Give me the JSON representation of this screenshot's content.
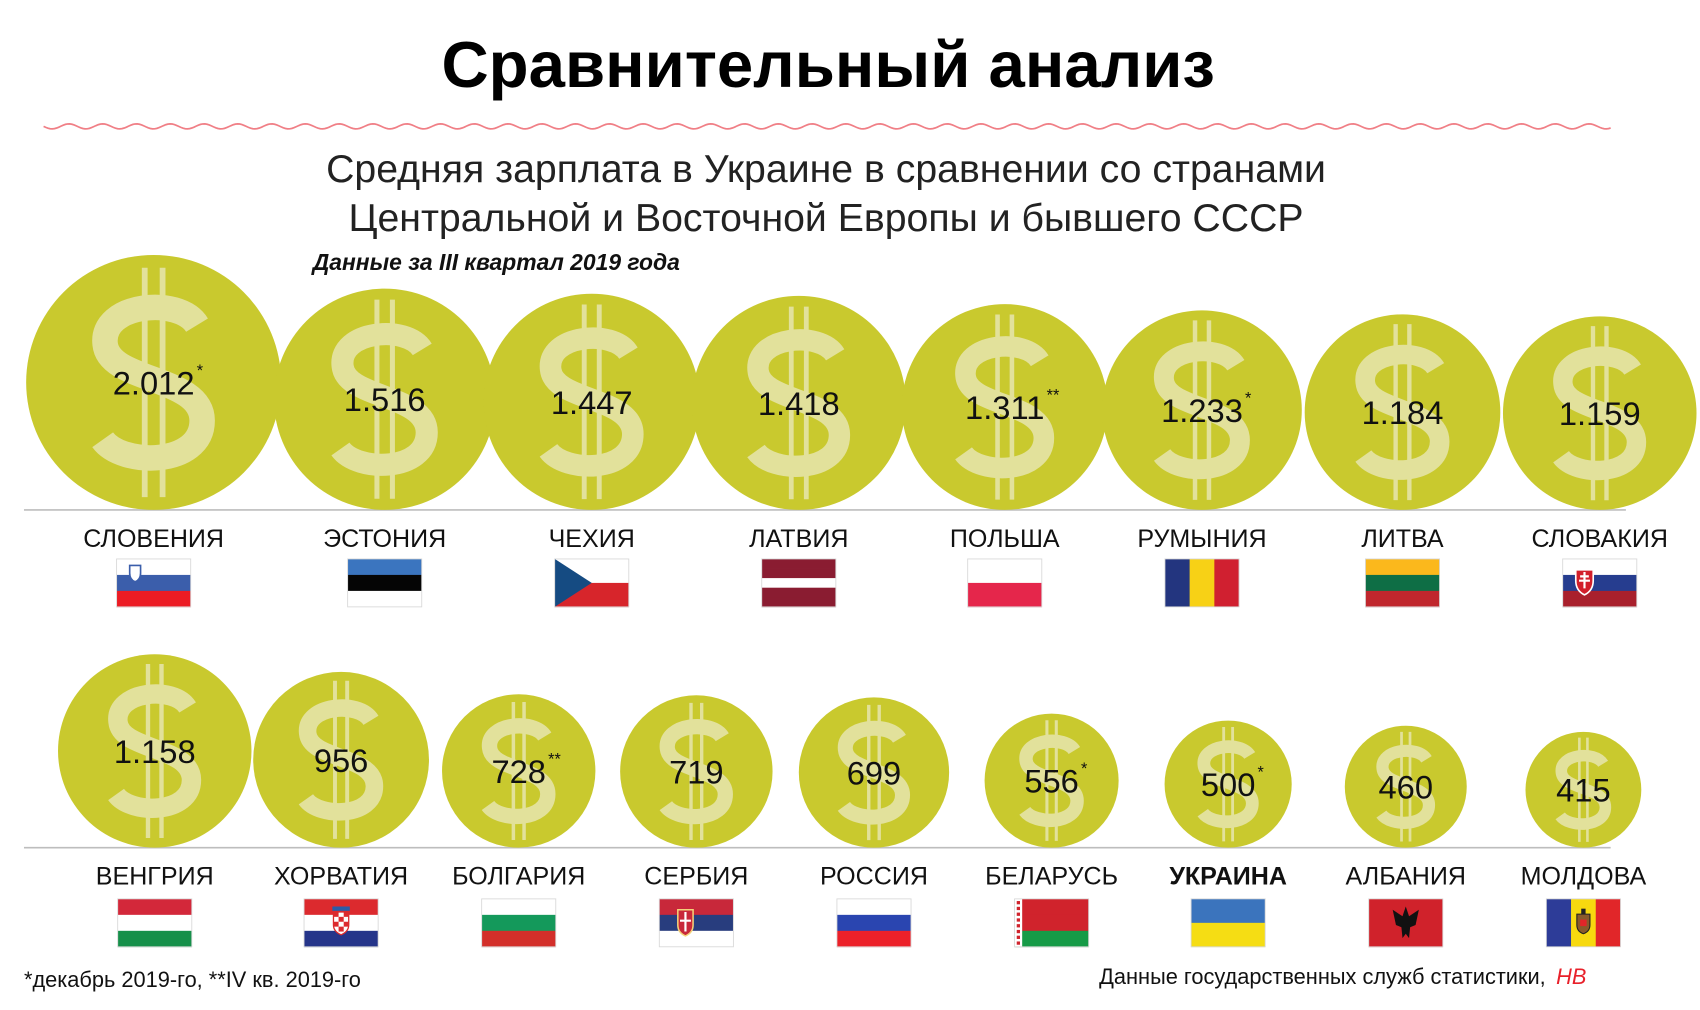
{
  "title": "Сравнительный анализ",
  "subtitle_line1": "Средняя зарплата в Украине в сравнении со странами",
  "subtitle_line2": "Центральной и Восточной Европы и бывшего СССР",
  "period_note": "Данные за III квартал 2019 года",
  "footnote": "*декабрь 2019-го, **IV кв. 2019-го",
  "source_text": "Данные государственных служб статистики, ",
  "source_brand": "НВ",
  "colors": {
    "coin": "#c9c92e",
    "dollar": "#e2e19b",
    "wave": "#f07f86",
    "baseline": "#bdbdbd",
    "brand": "#e8202a"
  },
  "chart_data": {
    "type": "bubble",
    "unit_icon": "dollar-sign-icon",
    "size_encoding": "area",
    "rows": [
      [
        {
          "country": "СЛОВЕНИЯ",
          "label": "2.012",
          "value": 2012,
          "note": "*",
          "flag": {
            "dir": "h",
            "stripes": [
              "#ffffff",
              "#3b5eab",
              "#ec1c24"
            ],
            "emblem": "slovenia-coat-of-arms"
          }
        },
        {
          "country": "ЭСТОНИЯ",
          "label": "1.516",
          "value": 1516,
          "note": "",
          "flag": {
            "dir": "h",
            "stripes": [
              "#3b75bf",
              "#050505",
              "#ffffff"
            ]
          }
        },
        {
          "country": "ЧЕХИЯ",
          "label": "1.447",
          "value": 1447,
          "note": "",
          "flag": {
            "dir": "h",
            "stripes": [
              "#ffffff",
              "#d7252b"
            ],
            "triangle": "#154b82"
          }
        },
        {
          "country": "ЛАТВИЯ",
          "label": "1.418",
          "value": 1418,
          "note": "",
          "flag": {
            "dir": "h",
            "stripes": [
              "#8a1c31",
              "#8a1c31",
              "#ffffff",
              "#8a1c31",
              "#8a1c31"
            ]
          }
        },
        {
          "country": "ПОЛЬША",
          "label": "1.311",
          "value": 1311,
          "note": "**",
          "flag": {
            "dir": "h",
            "stripes": [
              "#ffffff",
              "#e5264b"
            ]
          }
        },
        {
          "country": "РУМЫНИЯ",
          "label": "1.233",
          "value": 1233,
          "note": "*",
          "flag": {
            "dir": "v",
            "stripes": [
              "#23357f",
              "#f7d116",
              "#d02030"
            ]
          }
        },
        {
          "country": "ЛИТВА",
          "label": "1.184",
          "value": 1184,
          "note": "",
          "flag": {
            "dir": "h",
            "stripes": [
              "#fbb81c",
              "#0e6e45",
              "#c0272d"
            ]
          }
        },
        {
          "country": "СЛОВАКИЯ",
          "label": "1.159",
          "value": 1159,
          "note": "",
          "flag": {
            "dir": "h",
            "stripes": [
              "#ffffff",
              "#263d8f",
              "#a9202c"
            ],
            "emblem": "slovakia-coat-of-arms"
          }
        }
      ],
      [
        {
          "country": "ВЕНГРИЯ",
          "label": "1.158",
          "value": 1158,
          "note": "",
          "flag": {
            "dir": "h",
            "stripes": [
              "#d3283a",
              "#ffffff",
              "#16904a"
            ]
          }
        },
        {
          "country": "ХОРВАТИЯ",
          "label": "956",
          "value": 956,
          "note": "",
          "flag": {
            "dir": "h",
            "stripes": [
              "#dc2a2e",
              "#ffffff",
              "#25358a"
            ],
            "emblem": "croatia-coat-of-arms"
          }
        },
        {
          "country": "БОЛГАРИЯ",
          "label": "728",
          "value": 728,
          "note": "**",
          "flag": {
            "dir": "h",
            "stripes": [
              "#ffffff",
              "#14995b",
              "#d32f2a"
            ]
          }
        },
        {
          "country": "СЕРБИЯ",
          "label": "719",
          "value": 719,
          "note": "",
          "flag": {
            "dir": "h",
            "stripes": [
              "#c8283a",
              "#283d7e",
              "#ffffff"
            ],
            "emblem": "serbia-coat-of-arms"
          }
        },
        {
          "country": "РОССИЯ",
          "label": "699",
          "value": 699,
          "note": "",
          "flag": {
            "dir": "h",
            "stripes": [
              "#ffffff",
              "#2a45b0",
              "#ec2129"
            ]
          }
        },
        {
          "country": "БЕЛАРУСЬ",
          "label": "556",
          "value": 556,
          "note": "*",
          "flag": {
            "dir": "h",
            "stripes": [
              "#d0232c",
              "#d0232c",
              "#169b47"
            ],
            "ornament": true
          }
        },
        {
          "country": "УКРАИНА",
          "label": "500",
          "value": 500,
          "note": "*",
          "highlight": true,
          "flag": {
            "dir": "h",
            "stripes": [
              "#3b74bd",
              "#f5dd14"
            ]
          }
        },
        {
          "country": "АЛБАНИЯ",
          "label": "460",
          "value": 460,
          "note": "",
          "flag": {
            "dir": "h",
            "stripes": [
              "#d0222b"
            ],
            "emblem": "albania-eagle"
          }
        },
        {
          "country": "МОЛДОВА",
          "label": "415",
          "value": 415,
          "note": "",
          "flag": {
            "dir": "v",
            "stripes": [
              "#2d3c98",
              "#f7d90f",
              "#e12629"
            ],
            "emblem": "moldova-coat-of-arms"
          }
        }
      ]
    ]
  }
}
